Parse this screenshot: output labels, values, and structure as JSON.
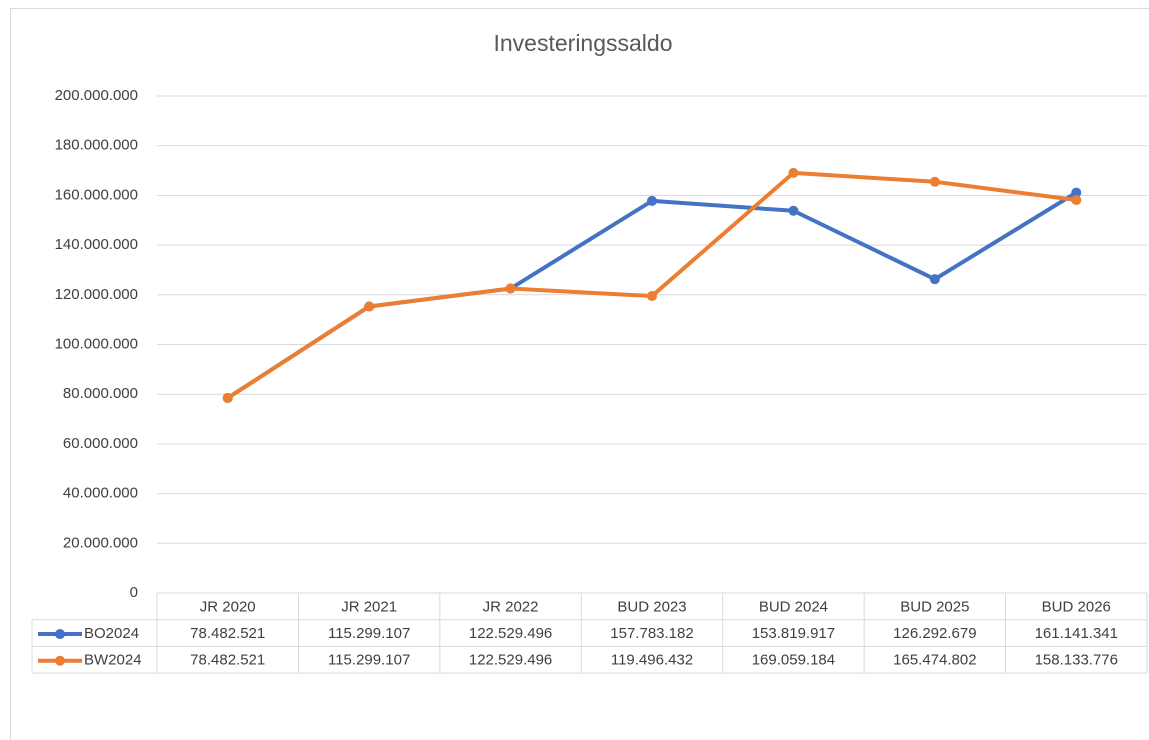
{
  "chart_data": {
    "type": "line",
    "title": "Investeringssaldo",
    "categories": [
      "JR 2020",
      "JR 2021",
      "JR 2022",
      "BUD 2023",
      "BUD 2024",
      "BUD 2025",
      "BUD 2026"
    ],
    "series": [
      {
        "name": "BO2024",
        "color": "#4472c4",
        "values": [
          78482521,
          115299107,
          122529496,
          157783182,
          153819917,
          126292679,
          161141341
        ],
        "value_labels": [
          "78.482.521",
          "115.299.107",
          "122.529.496",
          "157.783.182",
          "153.819.917",
          "126.292.679",
          "161.141.341"
        ]
      },
      {
        "name": "BW2024",
        "color": "#ed7d31",
        "values": [
          78482521,
          115299107,
          122529496,
          119496432,
          169059184,
          165474802,
          158133776
        ],
        "value_labels": [
          "78.482.521",
          "115.299.107",
          "122.529.496",
          "119.496.432",
          "169.059.184",
          "165.474.802",
          "158.133.776"
        ]
      }
    ],
    "ylim": [
      0,
      200000000
    ],
    "yticks": [
      0,
      {
        "value": 20000000,
        "label": "20.000.000"
      },
      {
        "value": 40000000,
        "label": "40.000.000"
      },
      {
        "value": 60000000,
        "label": "60.000.000"
      },
      {
        "value": 80000000,
        "label": "80.000.000"
      },
      {
        "value": 100000000,
        "label": "100.000.000"
      },
      {
        "value": 120000000,
        "label": "120.000.000"
      },
      {
        "value": 140000000,
        "label": "140.000.000"
      },
      {
        "value": 160000000,
        "label": "160.000.000"
      },
      {
        "value": 180000000,
        "label": "180.000.000"
      },
      {
        "value": 200000000,
        "label": "200.000.000"
      }
    ],
    "grid": true
  }
}
